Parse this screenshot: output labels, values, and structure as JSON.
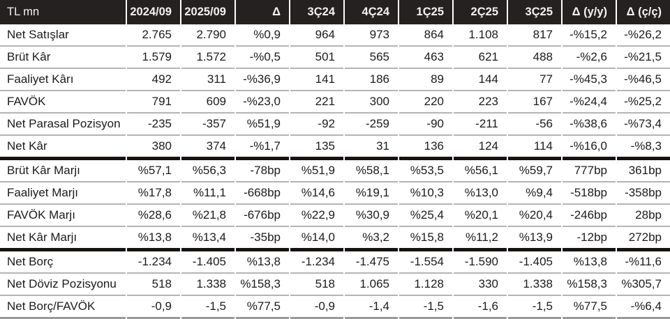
{
  "chart_data": {
    "type": "table",
    "title": "TL mn",
    "columns": [
      "TL mn",
      "2024/09",
      "2025/09",
      "Δ",
      "3Ç24",
      "4Ç24",
      "1Ç25",
      "2Ç25",
      "3Ç25",
      "Δ (y/y)",
      "Δ (ç/ç)"
    ],
    "layout_hints": {
      "header_style": "dark-inverse",
      "column_alignment": "first-left-rest-right",
      "section_breaks_after_rows": [
        "Net Kâr",
        "Net Kâr Marjı"
      ]
    },
    "sections": [
      {
        "rows": [
          {
            "label": "Net Satışlar",
            "values": [
              "2.765",
              "2.790",
              "%0,9",
              "964",
              "973",
              "864",
              "1.108",
              "817",
              "-%15,2",
              "-%26,2"
            ]
          },
          {
            "label": "Brüt Kâr",
            "values": [
              "1.579",
              "1.572",
              "-%0,5",
              "501",
              "565",
              "463",
              "621",
              "488",
              "-%2,6",
              "-%21,5"
            ]
          },
          {
            "label": "Faaliyet Kârı",
            "values": [
              "492",
              "311",
              "-%36,9",
              "141",
              "186",
              "89",
              "144",
              "77",
              "-%45,3",
              "-%46,5"
            ]
          },
          {
            "label": "FAVÖK",
            "values": [
              "791",
              "609",
              "-%23,0",
              "221",
              "300",
              "220",
              "223",
              "167",
              "-%24,4",
              "-%25,2"
            ]
          },
          {
            "label": "Net Parasal Pozisyon",
            "values": [
              "-235",
              "-357",
              "%51,9",
              "-92",
              "-259",
              "-90",
              "-211",
              "-56",
              "-%38,6",
              "-%73,4"
            ]
          },
          {
            "label": "Net Kâr",
            "values": [
              "380",
              "374",
              "-%1,7",
              "135",
              "31",
              "136",
              "124",
              "114",
              "-%16,0",
              "-%8,3"
            ]
          }
        ]
      },
      {
        "rows": [
          {
            "label": "Brüt Kâr Marjı",
            "values": [
              "%57,1",
              "%56,3",
              "-78bp",
              "%51,9",
              "%58,1",
              "%53,5",
              "%56,1",
              "%59,7",
              "777bp",
              "361bp"
            ]
          },
          {
            "label": "Faaliyet Marjı",
            "values": [
              "%17,8",
              "%11,1",
              "-668bp",
              "%14,6",
              "%19,1",
              "%10,3",
              "%13,0",
              "%9,4",
              "-518bp",
              "-358bp"
            ]
          },
          {
            "label": "FAVÖK Marjı",
            "values": [
              "%28,6",
              "%21,8",
              "-676bp",
              "%22,9",
              "%30,9",
              "%25,4",
              "%20,1",
              "%20,4",
              "-246bp",
              "28bp"
            ]
          },
          {
            "label": "Net Kâr Marjı",
            "values": [
              "%13,8",
              "%13,4",
              "-35bp",
              "%14,0",
              "%3,2",
              "%15,8",
              "%11,2",
              "%13,9",
              "-12bp",
              "272bp"
            ]
          }
        ]
      },
      {
        "rows": [
          {
            "label": "Net Borç",
            "values": [
              "-1.234",
              "-1.405",
              "%13,8",
              "-1.234",
              "-1.475",
              "-1.554",
              "-1.590",
              "-1.405",
              "%13,8",
              "-%11,6"
            ]
          },
          {
            "label": "Net Döviz Pozisyonu",
            "values": [
              "518",
              "1.338",
              "%158,3",
              "518",
              "1.065",
              "1.128",
              "330",
              "1.338",
              "%158,3",
              "%305,7"
            ]
          },
          {
            "label": "Net Borç/FAVÖK",
            "values": [
              "-0,9",
              "-1,5",
              "%77,5",
              "-0,9",
              "-1,4",
              "-1,5",
              "-1,6",
              "-1,5",
              "%77,5",
              "-%6,4"
            ]
          }
        ]
      }
    ]
  },
  "colors": {
    "header_bg": "#262121",
    "header_text": "#f3f2f2",
    "body_text": "#1b1b1b",
    "row_divider": "#b4b4b4",
    "section_divider": "#151212",
    "table_bottom_border": "#9a9a9a"
  }
}
